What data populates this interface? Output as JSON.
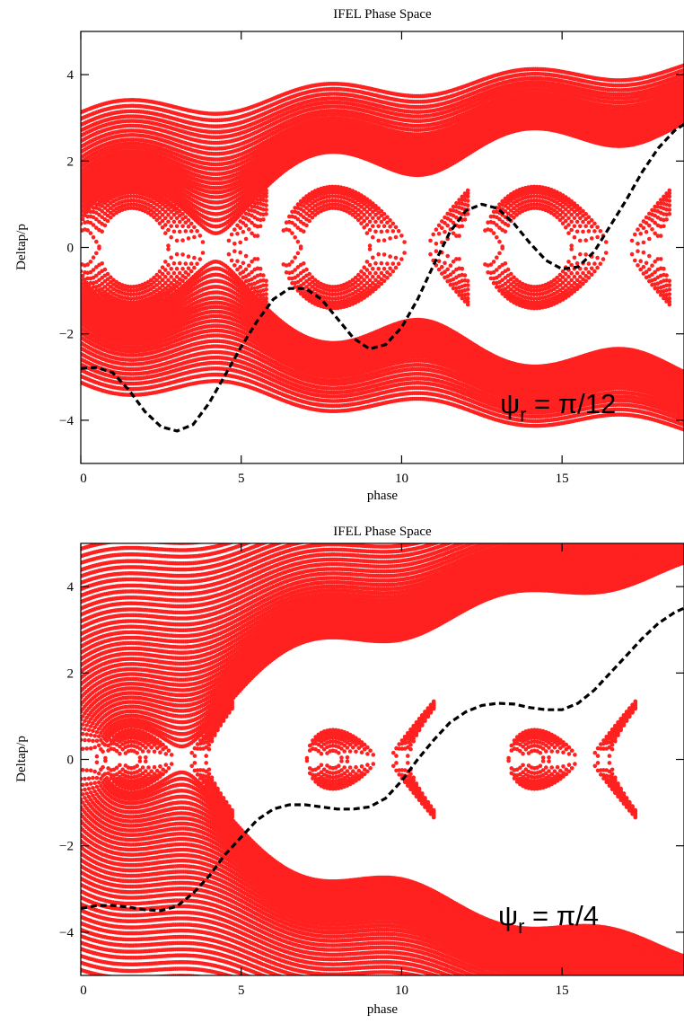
{
  "chart_data": [
    {
      "type": "scatter",
      "title": "IFEL Phase Space",
      "xlabel": "phase",
      "ylabel": "Deltap/p",
      "xlim": [
        0,
        18.8
      ],
      "ylim": [
        -5,
        5
      ],
      "x_ticks": [
        0,
        5,
        10,
        15
      ],
      "y_ticks": [
        -4,
        -2,
        0,
        2,
        4
      ],
      "x_tick_labels": [
        "0",
        "5",
        "10",
        "15"
      ],
      "y_tick_labels": [
        "−4",
        "−2",
        "0",
        "2",
        "4"
      ],
      "grid": false,
      "annotation": {
        "symbol": "ψ",
        "subscript": "r",
        "text": " = π/12"
      },
      "psi_r": 0.2618,
      "bucket_period": 6.2832,
      "bucket_centers_x": [
        2.9,
        9.18,
        15.47
      ],
      "trajectory_color": "#ff2020",
      "resonant_curve": {
        "style": "dashed",
        "color": "#000000",
        "points": [
          [
            0,
            -2.8
          ],
          [
            0.5,
            -2.78
          ],
          [
            1.0,
            -2.9
          ],
          [
            1.5,
            -3.3
          ],
          [
            2.0,
            -3.8
          ],
          [
            2.5,
            -4.15
          ],
          [
            3.0,
            -4.25
          ],
          [
            3.5,
            -4.1
          ],
          [
            4.0,
            -3.6
          ],
          [
            4.5,
            -2.95
          ],
          [
            5.0,
            -2.3
          ],
          [
            5.5,
            -1.7
          ],
          [
            6.0,
            -1.2
          ],
          [
            6.5,
            -0.95
          ],
          [
            7.0,
            -0.95
          ],
          [
            7.5,
            -1.2
          ],
          [
            8.0,
            -1.65
          ],
          [
            8.5,
            -2.1
          ],
          [
            9.0,
            -2.35
          ],
          [
            9.5,
            -2.25
          ],
          [
            10.0,
            -1.85
          ],
          [
            10.5,
            -1.2
          ],
          [
            11.0,
            -0.4
          ],
          [
            11.5,
            0.35
          ],
          [
            12.0,
            0.85
          ],
          [
            12.5,
            1.0
          ],
          [
            13.0,
            0.9
          ],
          [
            13.5,
            0.55
          ],
          [
            14.0,
            0.1
          ],
          [
            14.5,
            -0.3
          ],
          [
            15.0,
            -0.5
          ],
          [
            15.5,
            -0.45
          ],
          [
            16.0,
            -0.1
          ],
          [
            16.5,
            0.5
          ],
          [
            17.0,
            1.1
          ],
          [
            17.5,
            1.75
          ],
          [
            18.0,
            2.3
          ],
          [
            18.5,
            2.7
          ],
          [
            18.8,
            2.85
          ]
        ]
      }
    },
    {
      "type": "scatter",
      "title": "IFEL Phase Space",
      "xlabel": "phase",
      "ylabel": "Deltap/p",
      "xlim": [
        0,
        18.8
      ],
      "ylim": [
        -5,
        5
      ],
      "x_ticks": [
        0,
        5,
        10,
        15
      ],
      "y_ticks": [
        -4,
        -2,
        0,
        2,
        4
      ],
      "x_tick_labels": [
        "0",
        "5",
        "10",
        "15"
      ],
      "y_tick_labels": [
        "−4",
        "−2",
        "0",
        "2",
        "4"
      ],
      "grid": false,
      "annotation": {
        "symbol": "ψ",
        "subscript": "r",
        "text": " = π/4"
      },
      "psi_r": 0.7854,
      "bucket_period": 6.2832,
      "bucket_centers_x": [
        2.36,
        8.64,
        14.92
      ],
      "trajectory_color": "#ff2020",
      "resonant_curve": {
        "style": "dashed",
        "color": "#000000",
        "points": [
          [
            0,
            -3.45
          ],
          [
            0.5,
            -3.38
          ],
          [
            1.0,
            -3.38
          ],
          [
            1.5,
            -3.42
          ],
          [
            2.0,
            -3.48
          ],
          [
            2.5,
            -3.5
          ],
          [
            3.0,
            -3.4
          ],
          [
            3.5,
            -3.1
          ],
          [
            4.0,
            -2.7
          ],
          [
            4.5,
            -2.2
          ],
          [
            5.0,
            -1.8
          ],
          [
            5.5,
            -1.4
          ],
          [
            6.0,
            -1.15
          ],
          [
            6.5,
            -1.05
          ],
          [
            7.0,
            -1.05
          ],
          [
            7.5,
            -1.1
          ],
          [
            8.0,
            -1.15
          ],
          [
            8.5,
            -1.15
          ],
          [
            9.0,
            -1.1
          ],
          [
            9.5,
            -0.9
          ],
          [
            10.0,
            -0.5
          ],
          [
            10.5,
            0.0
          ],
          [
            11.0,
            0.45
          ],
          [
            11.5,
            0.85
          ],
          [
            12.0,
            1.1
          ],
          [
            12.5,
            1.25
          ],
          [
            13.0,
            1.3
          ],
          [
            13.5,
            1.28
          ],
          [
            14.0,
            1.2
          ],
          [
            14.5,
            1.15
          ],
          [
            15.0,
            1.15
          ],
          [
            15.5,
            1.3
          ],
          [
            16.0,
            1.6
          ],
          [
            16.5,
            2.0
          ],
          [
            17.0,
            2.4
          ],
          [
            17.5,
            2.8
          ],
          [
            18.0,
            3.15
          ],
          [
            18.5,
            3.4
          ],
          [
            18.8,
            3.5
          ]
        ]
      }
    }
  ]
}
